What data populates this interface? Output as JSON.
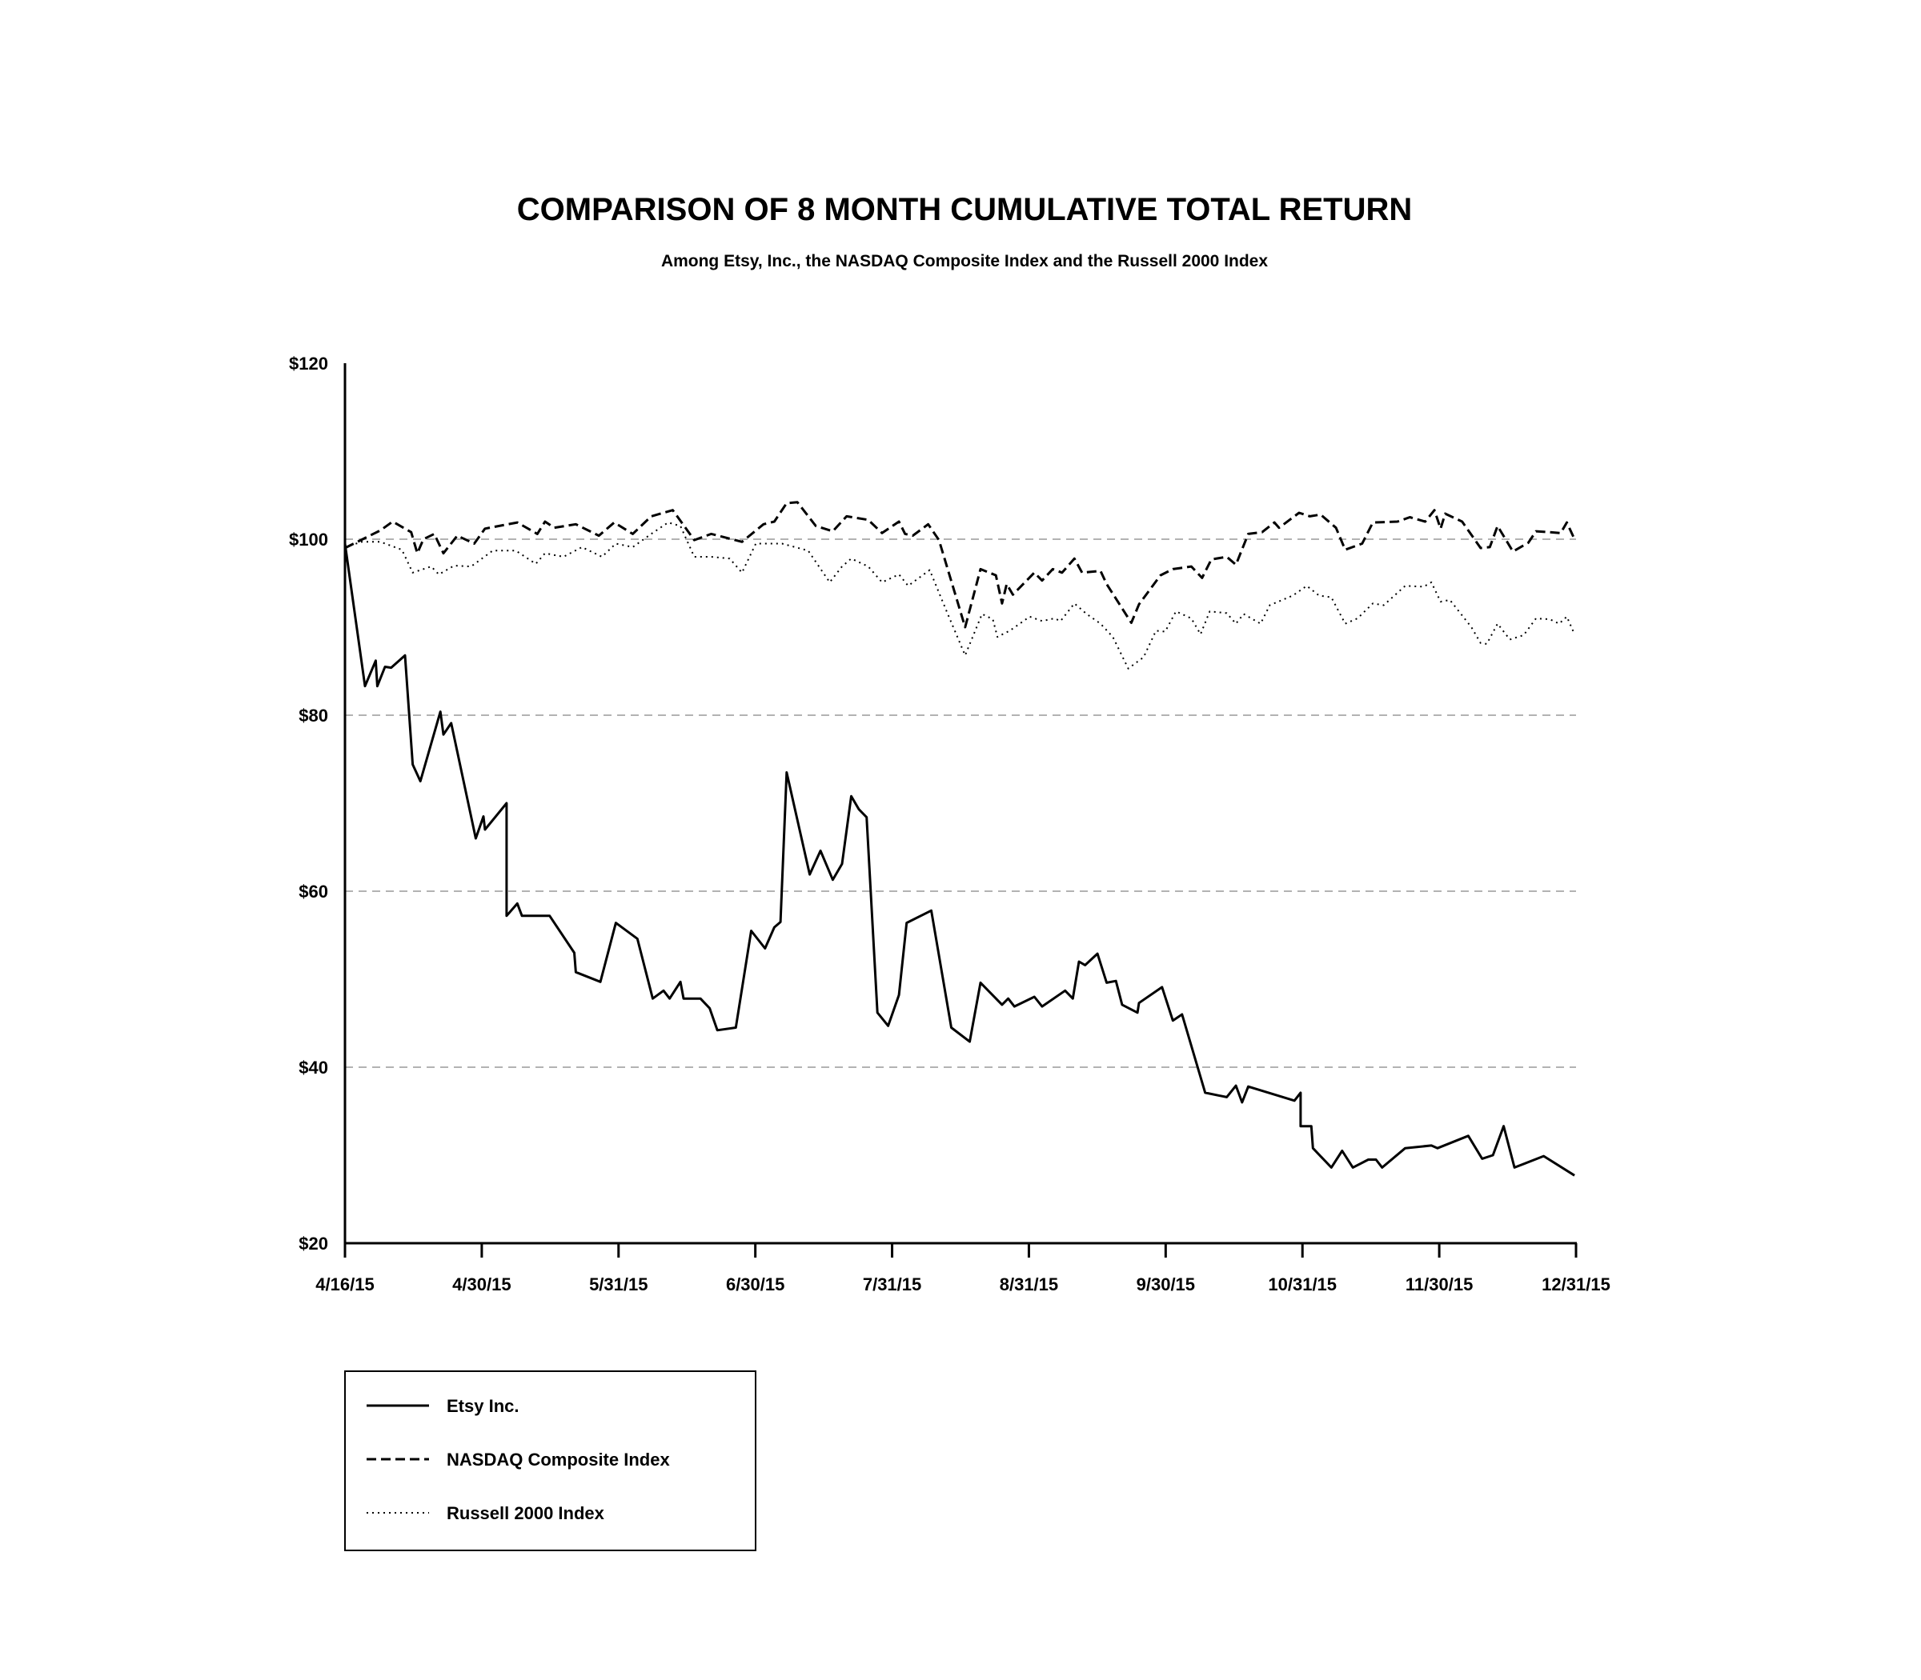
{
  "chart_data": {
    "type": "line",
    "title": "COMPARISON OF 8 MONTH CUMULATIVE TOTAL RETURN",
    "subtitle": "Among Etsy, Inc., the NASDAQ Composite Index and the Russell 2000 Index",
    "xlabel": "",
    "ylabel": "",
    "x_unit_note": "x values are positions measured in tick intervals from 4/16/15 (0) to 12/31/15 (8)",
    "x_ticks": [
      "4/16/15",
      "4/30/15",
      "5/31/15",
      "6/30/15",
      "7/31/15",
      "8/31/15",
      "9/30/15",
      "10/31/15",
      "11/30/15",
      "12/31/15"
    ],
    "x_range": [
      0,
      8
    ],
    "y_ticks": [
      20,
      40,
      60,
      80,
      100,
      120
    ],
    "y_tick_labels": [
      "$20",
      "$40",
      "$60",
      "$80",
      "$100",
      "$120"
    ],
    "ylim": [
      20,
      120
    ],
    "grid_values": [
      40,
      60,
      80,
      100
    ],
    "legend_placement": "bottom-left",
    "series": [
      {
        "name": "Etsy Inc.",
        "style": "solid",
        "points": [
          [
            0,
            99.5
          ],
          [
            0.13,
            83.3
          ],
          [
            0.2,
            86.2
          ],
          [
            0.21,
            83.3
          ],
          [
            0.26,
            85.5
          ],
          [
            0.3,
            85.4
          ],
          [
            0.39,
            86.8
          ],
          [
            0.44,
            74.4
          ],
          [
            0.49,
            72.5
          ],
          [
            0.62,
            80.4
          ],
          [
            0.64,
            77.8
          ],
          [
            0.69,
            79.1
          ],
          [
            0.85,
            66
          ],
          [
            0.9,
            68.5
          ],
          [
            0.91,
            67
          ],
          [
            1.05,
            70
          ],
          [
            1.05,
            57.2
          ],
          [
            1.12,
            58.6
          ],
          [
            1.15,
            57.2
          ],
          [
            1.33,
            57.2
          ],
          [
            1.49,
            53
          ],
          [
            1.5,
            50.8
          ],
          [
            1.66,
            49.7
          ],
          [
            1.76,
            56.4
          ],
          [
            1.9,
            54.6
          ],
          [
            2.0,
            47.8
          ],
          [
            2.07,
            48.7
          ],
          [
            2.11,
            47.8
          ],
          [
            2.18,
            49.7
          ],
          [
            2.2,
            47.8
          ],
          [
            2.31,
            47.8
          ],
          [
            2.37,
            46.7
          ],
          [
            2.42,
            44.2
          ],
          [
            2.54,
            44.5
          ],
          [
            2.64,
            55.5
          ],
          [
            2.73,
            53.5
          ],
          [
            2.79,
            55.9
          ],
          [
            2.83,
            56.5
          ],
          [
            2.87,
            73.5
          ],
          [
            3.02,
            61.9
          ],
          [
            3.09,
            64.6
          ],
          [
            3.17,
            61.3
          ],
          [
            3.23,
            63.1
          ],
          [
            3.29,
            70.8
          ],
          [
            3.34,
            69.3
          ],
          [
            3.39,
            68.4
          ],
          [
            3.46,
            46.2
          ],
          [
            3.53,
            44.7
          ],
          [
            3.6,
            48.2
          ],
          [
            3.65,
            56.4
          ],
          [
            3.81,
            57.8
          ],
          [
            3.94,
            44.5
          ],
          [
            4.06,
            42.9
          ],
          [
            4.13,
            49.6
          ],
          [
            4.27,
            47.1
          ],
          [
            4.31,
            47.8
          ],
          [
            4.35,
            46.9
          ],
          [
            4.48,
            48
          ],
          [
            4.53,
            46.9
          ],
          [
            4.68,
            48.7
          ],
          [
            4.73,
            47.8
          ],
          [
            4.77,
            52
          ],
          [
            4.81,
            51.6
          ],
          [
            4.89,
            52.9
          ],
          [
            4.95,
            49.6
          ],
          [
            5.01,
            49.8
          ],
          [
            5.05,
            47.1
          ],
          [
            5.15,
            46.2
          ],
          [
            5.16,
            47.3
          ],
          [
            5.31,
            49.1
          ],
          [
            5.38,
            45.3
          ],
          [
            5.44,
            46
          ],
          [
            5.59,
            37.1
          ],
          [
            5.73,
            36.6
          ],
          [
            5.79,
            37.9
          ],
          [
            5.83,
            36
          ],
          [
            5.87,
            37.8
          ],
          [
            6.17,
            36.2
          ],
          [
            6.21,
            37.1
          ],
          [
            6.21,
            33.3
          ],
          [
            6.28,
            33.3
          ],
          [
            6.29,
            30.8
          ],
          [
            6.41,
            28.6
          ],
          [
            6.48,
            30.5
          ],
          [
            6.55,
            28.6
          ],
          [
            6.65,
            29.5
          ],
          [
            6.7,
            29.5
          ],
          [
            6.74,
            28.6
          ],
          [
            6.89,
            30.8
          ],
          [
            7.06,
            31.1
          ],
          [
            7.1,
            30.8
          ],
          [
            7.3,
            32.2
          ],
          [
            7.39,
            29.6
          ],
          [
            7.46,
            30
          ],
          [
            7.53,
            33.3
          ],
          [
            7.6,
            28.6
          ],
          [
            7.79,
            29.9
          ],
          [
            7.99,
            27.7
          ]
        ]
      },
      {
        "name": "NASDAQ Composite Index",
        "style": "dashed",
        "points": [
          [
            0,
            99
          ],
          [
            0.23,
            101
          ],
          [
            0.31,
            102
          ],
          [
            0.43,
            100.8
          ],
          [
            0.47,
            98.4
          ],
          [
            0.51,
            100
          ],
          [
            0.58,
            100.6
          ],
          [
            0.64,
            98.4
          ],
          [
            0.73,
            100.4
          ],
          [
            0.84,
            99.5
          ],
          [
            0.91,
            101.2
          ],
          [
            1.12,
            101.9
          ],
          [
            1.25,
            100.6
          ],
          [
            1.3,
            102
          ],
          [
            1.36,
            101.3
          ],
          [
            1.5,
            101.7
          ],
          [
            1.65,
            100.4
          ],
          [
            1.75,
            101.9
          ],
          [
            1.87,
            100.6
          ],
          [
            1.99,
            102.6
          ],
          [
            2.13,
            103.3
          ],
          [
            2.27,
            99.9
          ],
          [
            2.38,
            100.6
          ],
          [
            2.58,
            99.7
          ],
          [
            2.72,
            101.7
          ],
          [
            2.79,
            102
          ],
          [
            2.87,
            104.1
          ],
          [
            2.94,
            104.2
          ],
          [
            3.06,
            101.5
          ],
          [
            3.17,
            100.9
          ],
          [
            3.26,
            102.6
          ],
          [
            3.4,
            102.2
          ],
          [
            3.49,
            100.7
          ],
          [
            3.6,
            102
          ],
          [
            3.64,
            100.6
          ],
          [
            3.69,
            100.4
          ],
          [
            3.79,
            101.7
          ],
          [
            3.86,
            99.9
          ],
          [
            4.03,
            90
          ],
          [
            4.13,
            96.6
          ],
          [
            4.23,
            95.9
          ],
          [
            4.27,
            92.7
          ],
          [
            4.3,
            94.9
          ],
          [
            4.34,
            93.7
          ],
          [
            4.48,
            96.2
          ],
          [
            4.53,
            95.3
          ],
          [
            4.6,
            96.6
          ],
          [
            4.66,
            96.2
          ],
          [
            4.74,
            97.8
          ],
          [
            4.79,
            96.2
          ],
          [
            4.91,
            96.4
          ],
          [
            4.95,
            94.9
          ],
          [
            5.11,
            90.5
          ],
          [
            5.16,
            92.6
          ],
          [
            5.3,
            95.9
          ],
          [
            5.38,
            96.6
          ],
          [
            5.5,
            96.9
          ],
          [
            5.57,
            95.6
          ],
          [
            5.63,
            97.7
          ],
          [
            5.73,
            98
          ],
          [
            5.79,
            97.1
          ],
          [
            5.87,
            100.6
          ],
          [
            5.96,
            100.8
          ],
          [
            6.04,
            101.9
          ],
          [
            6.07,
            101.3
          ],
          [
            6.2,
            103
          ],
          [
            6.27,
            102.6
          ],
          [
            6.34,
            102.8
          ],
          [
            6.44,
            101.3
          ],
          [
            6.5,
            98.8
          ],
          [
            6.61,
            99.5
          ],
          [
            6.68,
            101.9
          ],
          [
            6.84,
            102
          ],
          [
            6.92,
            102.5
          ],
          [
            7.02,
            102
          ],
          [
            7.08,
            103.3
          ],
          [
            7.12,
            101.2
          ],
          [
            7.15,
            102.9
          ],
          [
            7.26,
            102
          ],
          [
            7.38,
            99
          ],
          [
            7.44,
            99.1
          ],
          [
            7.49,
            101.5
          ],
          [
            7.59,
            98.6
          ],
          [
            7.69,
            99.6
          ],
          [
            7.74,
            100.9
          ],
          [
            7.83,
            100.8
          ],
          [
            7.9,
            100.7
          ],
          [
            7.94,
            101.9
          ],
          [
            7.99,
            100
          ]
        ]
      },
      {
        "name": "Russell 2000 Index",
        "style": "dotted",
        "points": [
          [
            0,
            99.1
          ],
          [
            0.11,
            99.7
          ],
          [
            0.23,
            99.7
          ],
          [
            0.37,
            98.8
          ],
          [
            0.44,
            96.2
          ],
          [
            0.56,
            96.9
          ],
          [
            0.61,
            96
          ],
          [
            0.71,
            97
          ],
          [
            0.82,
            96.9
          ],
          [
            0.96,
            98.7
          ],
          [
            1.11,
            98.7
          ],
          [
            1.24,
            97.2
          ],
          [
            1.3,
            98.4
          ],
          [
            1.42,
            98
          ],
          [
            1.54,
            99.1
          ],
          [
            1.67,
            98
          ],
          [
            1.76,
            99.5
          ],
          [
            1.87,
            99.1
          ],
          [
            1.99,
            100.6
          ],
          [
            2.1,
            101.9
          ],
          [
            2.18,
            101.5
          ],
          [
            2.27,
            98
          ],
          [
            2.38,
            98
          ],
          [
            2.5,
            97.8
          ],
          [
            2.58,
            96.2
          ],
          [
            2.67,
            99.5
          ],
          [
            2.84,
            99.5
          ],
          [
            3.01,
            98.7
          ],
          [
            3.15,
            95.1
          ],
          [
            3.23,
            96.9
          ],
          [
            3.29,
            97.8
          ],
          [
            3.4,
            96.9
          ],
          [
            3.49,
            95.1
          ],
          [
            3.6,
            96
          ],
          [
            3.66,
            94.7
          ],
          [
            3.8,
            96.5
          ],
          [
            3.91,
            91.8
          ],
          [
            4.03,
            86.8
          ],
          [
            4.14,
            91.5
          ],
          [
            4.21,
            90.9
          ],
          [
            4.24,
            88.9
          ],
          [
            4.32,
            89.6
          ],
          [
            4.45,
            91.2
          ],
          [
            4.53,
            90.7
          ],
          [
            4.61,
            91
          ],
          [
            4.65,
            90.7
          ],
          [
            4.74,
            92.7
          ],
          [
            4.82,
            91.5
          ],
          [
            4.91,
            90.4
          ],
          [
            4.99,
            88.9
          ],
          [
            5.09,
            85.3
          ],
          [
            5.19,
            86.6
          ],
          [
            5.27,
            89.6
          ],
          [
            5.33,
            89.5
          ],
          [
            5.4,
            91.8
          ],
          [
            5.5,
            91
          ],
          [
            5.56,
            89.2
          ],
          [
            5.62,
            91.8
          ],
          [
            5.73,
            91.6
          ],
          [
            5.79,
            90.4
          ],
          [
            5.84,
            91.5
          ],
          [
            5.95,
            90.4
          ],
          [
            6.01,
            92.5
          ],
          [
            6.16,
            93.6
          ],
          [
            6.25,
            94.7
          ],
          [
            6.33,
            93.6
          ],
          [
            6.41,
            93.4
          ],
          [
            6.5,
            90.4
          ],
          [
            6.58,
            91
          ],
          [
            6.68,
            92.7
          ],
          [
            6.75,
            92.5
          ],
          [
            6.89,
            94.7
          ],
          [
            7.01,
            94.6
          ],
          [
            7.06,
            95.1
          ],
          [
            7.12,
            92.9
          ],
          [
            7.18,
            93.1
          ],
          [
            7.32,
            90
          ],
          [
            7.38,
            88.2
          ],
          [
            7.42,
            88.1
          ],
          [
            7.49,
            90.4
          ],
          [
            7.57,
            88.6
          ],
          [
            7.66,
            89.1
          ],
          [
            7.74,
            91
          ],
          [
            7.83,
            90.9
          ],
          [
            7.89,
            90.4
          ],
          [
            7.94,
            91.2
          ],
          [
            7.99,
            89.2
          ]
        ]
      }
    ]
  }
}
